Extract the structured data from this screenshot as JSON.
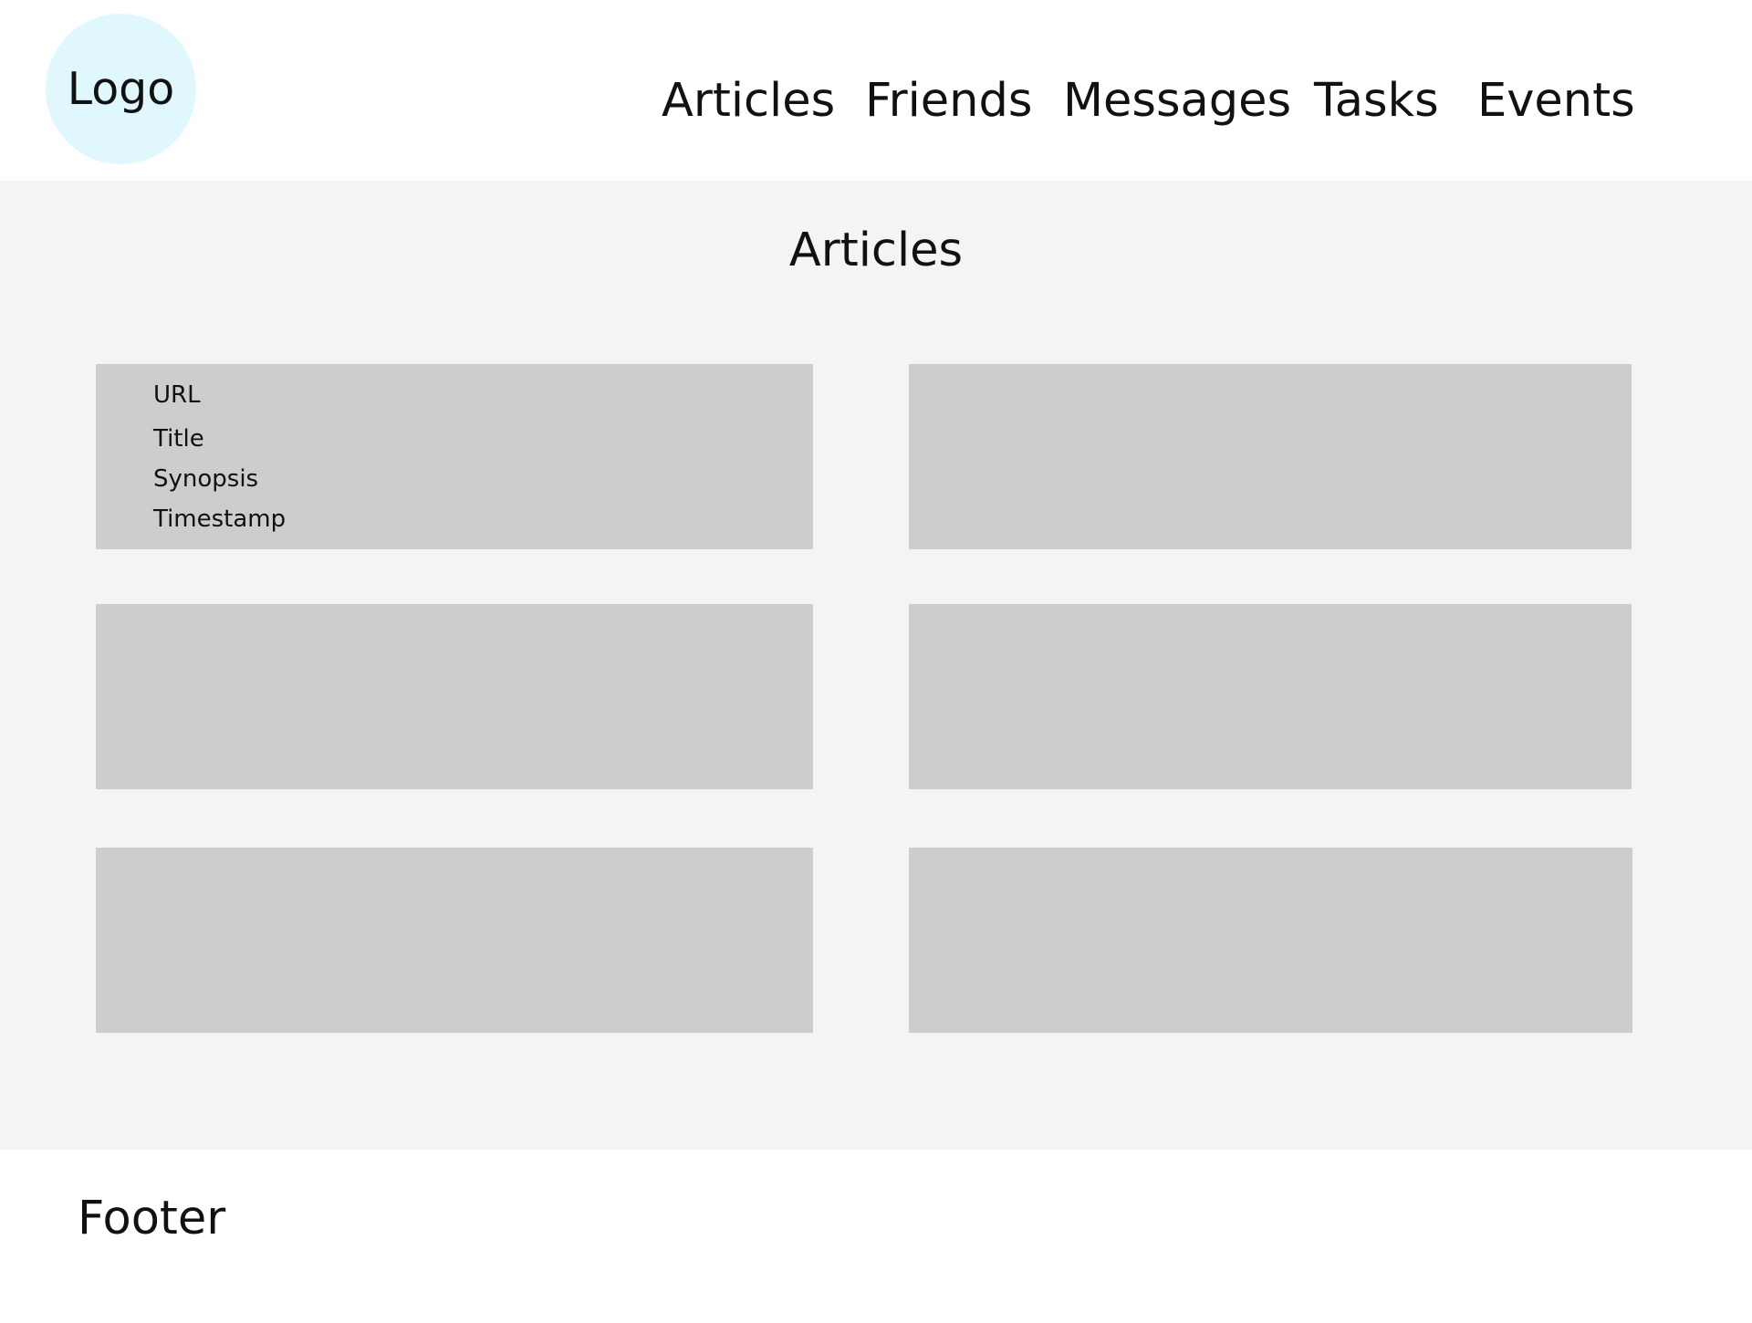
{
  "header": {
    "logo_label": "Logo",
    "nav": [
      {
        "label": "Articles"
      },
      {
        "label": "Friends"
      },
      {
        "label": "Messages"
      },
      {
        "label": "Tasks"
      },
      {
        "label": "Events"
      }
    ]
  },
  "main": {
    "title": "Articles",
    "cards": [
      {
        "fields": [
          "URL",
          "Title",
          "Synopsis",
          "Timestamp"
        ]
      },
      {
        "fields": []
      },
      {
        "fields": []
      },
      {
        "fields": []
      },
      {
        "fields": []
      },
      {
        "fields": []
      }
    ]
  },
  "footer": {
    "label": "Footer"
  },
  "colors": {
    "logo_bg": "#e0f8fd",
    "main_bg": "#f4f4f4",
    "card_bg": "#cdcdcd",
    "text": "#111111"
  }
}
